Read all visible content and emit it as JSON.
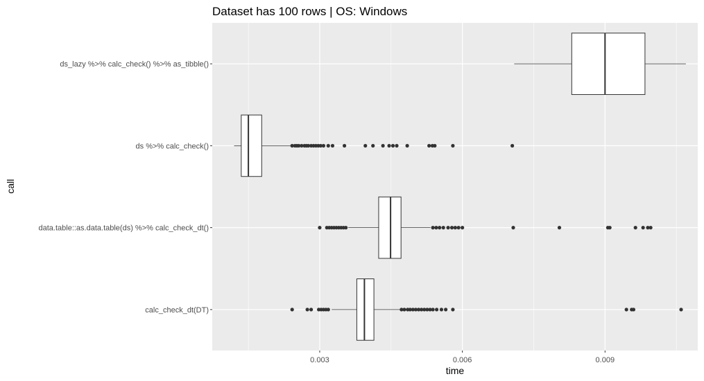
{
  "chart_data": {
    "type": "boxplot",
    "orientation": "horizontal",
    "title": "Dataset has 100 rows | OS: Windows",
    "xlabel": "time",
    "ylabel": "call",
    "xlim": [
      0.00074,
      0.01095
    ],
    "x_ticks": [
      {
        "value": 0.003,
        "label": "0.003"
      },
      {
        "value": 0.006,
        "label": "0.006"
      },
      {
        "value": 0.009,
        "label": "0.009"
      }
    ],
    "grid": true,
    "colors": {
      "panel": "#ebebeb",
      "grid_major": "#ffffff",
      "box_fill": "#ffffff",
      "box_line": "#333333",
      "outlier": "#333333",
      "tick_text": "#4d4d4d"
    },
    "categories": [
      "ds_lazy %>% calc_check() %>% as_tibble()",
      "ds %>% calc_check()",
      "data.table::as.data.table(ds) %>% calc_check_dt()",
      "calc_check_dt(DT)"
    ],
    "boxes": [
      {
        "label": "ds_lazy %>% calc_check() %>% as_tibble()",
        "whisker_low": 0.00709,
        "q1": 0.0083,
        "median": 0.009,
        "q3": 0.00984,
        "whisker_high": 0.0107,
        "outliers": []
      },
      {
        "label": "ds %>% calc_check()",
        "whisker_low": 0.0012,
        "q1": 0.00135,
        "median": 0.0015,
        "q3": 0.00178,
        "whisker_high": 0.0024,
        "outliers": [
          0.00242,
          0.00248,
          0.00252,
          0.00256,
          0.00262,
          0.00268,
          0.00272,
          0.00276,
          0.00282,
          0.00287,
          0.00292,
          0.00297,
          0.00302,
          0.00308,
          0.00318,
          0.00327,
          0.00352,
          0.00396,
          0.00412,
          0.00433,
          0.00446,
          0.00454,
          0.00462,
          0.00484,
          0.0053,
          0.00537,
          0.00542,
          0.0058,
          0.00705
        ]
      },
      {
        "label": "data.table::as.data.table(ds) %>% calc_check_dt()",
        "whisker_low": 0.0036,
        "q1": 0.00424,
        "median": 0.00449,
        "q3": 0.00471,
        "whisker_high": 0.00533,
        "outliers": [
          0.003,
          0.00315,
          0.0032,
          0.00325,
          0.0033,
          0.00335,
          0.0034,
          0.00345,
          0.0035,
          0.00355,
          0.00538,
          0.00545,
          0.00552,
          0.0056,
          0.0057,
          0.00578,
          0.00585,
          0.00592,
          0.006,
          0.00707,
          0.00804,
          0.00906,
          0.0091,
          0.00964,
          0.0098,
          0.0099,
          0.00996
        ]
      },
      {
        "label": "calc_check_dt(DT)",
        "whisker_low": 0.00325,
        "q1": 0.00378,
        "median": 0.00394,
        "q3": 0.00414,
        "whisker_high": 0.0047,
        "outliers": [
          0.00242,
          0.00274,
          0.00282,
          0.00298,
          0.00303,
          0.00308,
          0.00313,
          0.00318,
          0.00472,
          0.00478,
          0.00485,
          0.0049,
          0.00496,
          0.00502,
          0.00508,
          0.00514,
          0.0052,
          0.00526,
          0.00532,
          0.00538,
          0.00546,
          0.00556,
          0.00565,
          0.0058,
          0.00945,
          0.00956,
          0.0096,
          0.0106
        ]
      }
    ]
  }
}
